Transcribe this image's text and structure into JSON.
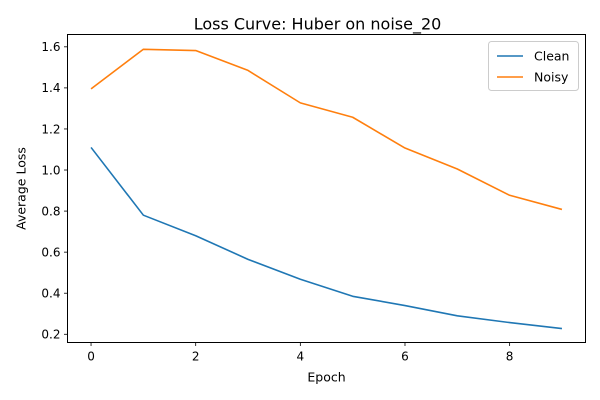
{
  "chart_data": {
    "type": "line",
    "title": "Loss Curve: Huber on noise_20",
    "xlabel": "Epoch",
    "ylabel": "Average Loss",
    "x": [
      0,
      1,
      2,
      3,
      4,
      5,
      6,
      7,
      8,
      9
    ],
    "xlim": [
      -0.45,
      9.45
    ],
    "ylim": [
      0.16,
      1.66
    ],
    "xticks": [
      0,
      2,
      4,
      6,
      8
    ],
    "yticks": [
      0.2,
      0.4,
      0.6,
      0.8,
      1.0,
      1.2,
      1.4,
      1.6
    ],
    "ytick_labels": [
      "0.2",
      "0.4",
      "0.6",
      "0.8",
      "1.0",
      "1.2",
      "1.4",
      "1.6"
    ],
    "grid": false,
    "legend_position": "top-right",
    "series": [
      {
        "name": "Clean",
        "color": "#1f77b4",
        "values": [
          1.11,
          0.78,
          0.68,
          0.565,
          0.468,
          0.385,
          0.34,
          0.29,
          0.257,
          0.228
        ]
      },
      {
        "name": "Noisy",
        "color": "#ff7f0e",
        "values": [
          1.395,
          1.588,
          1.582,
          1.485,
          1.327,
          1.257,
          1.107,
          1.005,
          0.877,
          0.808
        ]
      }
    ]
  }
}
